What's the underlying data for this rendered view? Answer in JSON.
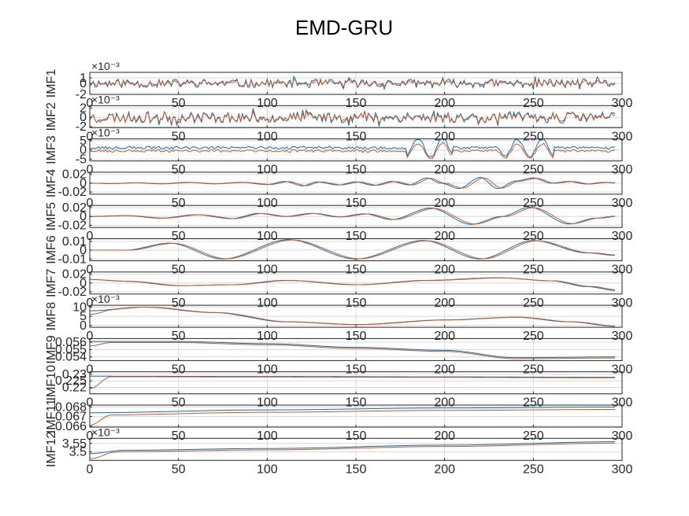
{
  "figure": {
    "title": "EMD-GRU",
    "colors": {
      "actual": "#0072BD",
      "predicted": "#D95319",
      "axis": "#262626",
      "grid": "#d9d9d9"
    }
  },
  "chart_data": {
    "type": "line",
    "title": "EMD-GRU",
    "x_range": [
      0,
      300
    ],
    "x_ticks": [
      0,
      50,
      100,
      150,
      200,
      250,
      300
    ],
    "x_tick_labels": [
      "0",
      "50",
      "100",
      "150",
      "200",
      "250",
      "300"
    ],
    "n_points": 297,
    "grid": true,
    "subplots": [
      {
        "ylabel": "IMF1",
        "exponent": "×10⁻³",
        "ylim": [
          -2,
          2
        ],
        "yticks": [
          -2,
          0,
          1
        ],
        "ytick_labels": [
          "-2",
          "0",
          "1"
        ],
        "kind": "noise",
        "amp": 0.8,
        "pred_scale": 0.55,
        "seed": 11,
        "offset": 0
      },
      {
        "ylabel": "IMF2",
        "exponent": "×10⁻³",
        "ylim": [
          -2.2,
          2.5
        ],
        "yticks": [
          -2,
          0,
          2
        ],
        "ytick_labels": [
          "-2",
          "0",
          "2"
        ],
        "kind": "noise",
        "amp": 1.2,
        "pred_scale": 0.7,
        "seed": 23,
        "offset": 0
      },
      {
        "ylabel": "IMF3",
        "exponent": "×10⁻³",
        "ylim": [
          -6,
          6
        ],
        "yticks": [
          -5,
          0,
          5
        ],
        "ytick_labels": [
          "-5",
          "0",
          "5"
        ],
        "kind": "bursty",
        "amp": 1.2,
        "pred_scale": 0.8,
        "seed": 37,
        "offset": 0
      },
      {
        "ylabel": "IMF4",
        "exponent": "",
        "ylim": [
          -0.025,
          0.025
        ],
        "yticks": [
          -0.02,
          0,
          0.02
        ],
        "ytick_labels": [
          "-0.02",
          "0",
          "0.02"
        ],
        "kind": "keys",
        "pred_shift": 2,
        "pred_scale": 0.92,
        "keys": [
          [
            0,
            0
          ],
          [
            12,
            -0.001
          ],
          [
            25,
            0.001
          ],
          [
            40,
            -0.0015
          ],
          [
            55,
            0.002
          ],
          [
            70,
            -0.0015
          ],
          [
            85,
            0.002
          ],
          [
            100,
            -0.003
          ],
          [
            110,
            0.004
          ],
          [
            120,
            -0.006
          ],
          [
            128,
            0.003
          ],
          [
            140,
            -0.004
          ],
          [
            150,
            0.003
          ],
          [
            160,
            -0.005
          ],
          [
            170,
            0.004
          ],
          [
            180,
            -0.004
          ],
          [
            190,
            0.012
          ],
          [
            198,
            0
          ],
          [
            208,
            -0.012
          ],
          [
            220,
            0.013
          ],
          [
            230,
            -0.012
          ],
          [
            240,
            0.005
          ],
          [
            250,
            0.012
          ],
          [
            260,
            0
          ],
          [
            270,
            0.004
          ],
          [
            280,
            -0.002
          ],
          [
            290,
            0.002
          ],
          [
            297,
            0
          ]
        ]
      },
      {
        "ylabel": "IMF5",
        "exponent": "",
        "ylim": [
          -0.025,
          0.025
        ],
        "yticks": [
          -0.02,
          0,
          0.02
        ],
        "ytick_labels": [
          "-0.02",
          "0",
          "0.02"
        ],
        "kind": "keys",
        "pred_shift": 2,
        "pred_scale": 0.95,
        "keys": [
          [
            0,
            0
          ],
          [
            20,
            0.002
          ],
          [
            40,
            -0.004
          ],
          [
            60,
            0.004
          ],
          [
            80,
            -0.005
          ],
          [
            95,
            0.007
          ],
          [
            110,
            0
          ],
          [
            125,
            0.007
          ],
          [
            140,
            -0.001
          ],
          [
            155,
            0.006
          ],
          [
            170,
            -0.007
          ],
          [
            192,
            0.019
          ],
          [
            215,
            -0.018
          ],
          [
            232,
            0
          ],
          [
            248,
            0.021
          ],
          [
            270,
            -0.017
          ],
          [
            285,
            -0.004
          ],
          [
            297,
            0.001
          ]
        ]
      },
      {
        "ylabel": "IMF6",
        "exponent": "",
        "ylim": [
          -0.012,
          0.013
        ],
        "yticks": [
          -0.01,
          0,
          0.01
        ],
        "ytick_labels": [
          "-0.01",
          "0",
          "0.01"
        ],
        "kind": "keys",
        "pred_shift": 2,
        "pred_scale": 0.97,
        "keys": [
          [
            0,
            0
          ],
          [
            20,
            0
          ],
          [
            45,
            0.008
          ],
          [
            75,
            -0.01
          ],
          [
            112,
            0.012
          ],
          [
            150,
            -0.01
          ],
          [
            188,
            0.011
          ],
          [
            220,
            -0.01
          ],
          [
            250,
            0.011
          ],
          [
            280,
            -0.003
          ],
          [
            297,
            -0.006
          ]
        ]
      },
      {
        "ylabel": "IMF7",
        "exponent": "",
        "ylim": [
          -0.025,
          0.025
        ],
        "yticks": [
          -0.02,
          0,
          0.02
        ],
        "ytick_labels": [
          "-0.02",
          "0",
          "0.02"
        ],
        "kind": "keys",
        "pred_shift": 2,
        "pred_scale": 0.96,
        "keys": [
          [
            0,
            0.008
          ],
          [
            20,
            0.004
          ],
          [
            50,
            -0.006
          ],
          [
            80,
            -0.004
          ],
          [
            110,
            0.006
          ],
          [
            150,
            -0.004
          ],
          [
            190,
            0.006
          ],
          [
            230,
            0.012
          ],
          [
            260,
            0.005
          ],
          [
            280,
            -0.008
          ],
          [
            297,
            -0.017
          ]
        ]
      },
      {
        "ylabel": "IMF8",
        "exponent": "×10⁻³",
        "ylim": [
          -1,
          11
        ],
        "yticks": [
          0,
          5,
          10
        ],
        "ytick_labels": [
          "0",
          "5",
          "10"
        ],
        "kind": "keys",
        "pred_shift": 2,
        "pred_scale": 1.0,
        "pred_start": 6,
        "keys": [
          [
            0,
            8
          ],
          [
            30,
            10
          ],
          [
            70,
            7
          ],
          [
            110,
            2
          ],
          [
            150,
            0.5
          ],
          [
            200,
            3
          ],
          [
            240,
            4.5
          ],
          [
            270,
            2
          ],
          [
            297,
            -0.5
          ]
        ]
      },
      {
        "ylabel": "IMF9",
        "exponent": "",
        "ylim": [
          0.0535,
          0.0565
        ],
        "yticks": [
          0.054,
          0.055,
          0.056
        ],
        "ytick_labels": [
          "0.054",
          "0.055",
          "0.056"
        ],
        "kind": "keys",
        "pred_shift": 0,
        "pred_scale": 1.0,
        "pred_start": 0.0555,
        "pred_bias": -0.00015,
        "keys": [
          [
            0,
            0.0561
          ],
          [
            50,
            0.0561
          ],
          [
            100,
            0.0558
          ],
          [
            150,
            0.0553
          ],
          [
            200,
            0.0549
          ],
          [
            240,
            0.0539
          ],
          [
            297,
            0.054
          ]
        ]
      },
      {
        "ylabel": "IMF10",
        "exponent": "",
        "ylim": [
          0.215,
          0.232
        ],
        "yticks": [
          0.22,
          0.225,
          0.23
        ],
        "ytick_labels": [
          "0.22",
          "0.225",
          "0.23"
        ],
        "kind": "keys",
        "pred_shift": 0,
        "pred_scale": 1.0,
        "pred_start": 0.219,
        "pred_bias": -0.0004,
        "keys": [
          [
            0,
            0.2286
          ],
          [
            100,
            0.2284
          ],
          [
            200,
            0.2281
          ],
          [
            297,
            0.2278
          ]
        ]
      },
      {
        "ylabel": "IMF11",
        "exponent": "",
        "ylim": [
          0.0659,
          0.0682
        ],
        "yticks": [
          0.066,
          0.067,
          0.068
        ],
        "ytick_labels": [
          "0.066",
          "0.067",
          "0.068"
        ],
        "kind": "keys",
        "pred_shift": 0,
        "pred_scale": 1.0,
        "pred_start": 0.0661,
        "pred_bias": -0.00025,
        "keys": [
          [
            0,
            0.0674
          ],
          [
            100,
            0.0677
          ],
          [
            200,
            0.0679
          ],
          [
            297,
            0.068
          ]
        ]
      },
      {
        "ylabel": "IMF12",
        "exponent": "×10⁻³",
        "ylim": [
          3.45,
          3.58
        ],
        "yticks": [
          3.5,
          3.55
        ],
        "ytick_labels": [
          "3.5",
          "3.55"
        ],
        "kind": "keys",
        "pred_shift": 0,
        "pred_scale": 1.0,
        "pred_start": 3.46,
        "pred_bias": -0.008,
        "keys": [
          [
            0,
            3.49
          ],
          [
            20,
            3.51
          ],
          [
            100,
            3.52
          ],
          [
            200,
            3.54
          ],
          [
            297,
            3.56
          ]
        ]
      }
    ]
  }
}
